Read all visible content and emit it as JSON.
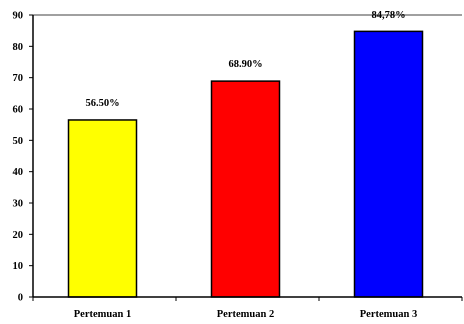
{
  "chart_data": {
    "type": "bar",
    "categories": [
      "Pertemuan 1",
      "Pertemuan 2",
      "Pertemuan 3"
    ],
    "values": [
      56.5,
      68.9,
      84.78
    ],
    "data_labels": [
      "56.50%",
      "68.90%",
      "84,78%"
    ],
    "bar_colors": [
      "#ffff00",
      "#ff0000",
      "#0000ff"
    ],
    "ylim": [
      0,
      90
    ],
    "yticks": [
      0,
      10,
      20,
      30,
      40,
      50,
      60,
      70,
      80,
      90
    ],
    "ytick_labels": [
      "0",
      "10",
      "20",
      "30",
      "40",
      "50",
      "60",
      "70",
      "80",
      "90"
    ],
    "grid": false,
    "legend": "none",
    "title": "",
    "xlabel": "",
    "ylabel": ""
  }
}
